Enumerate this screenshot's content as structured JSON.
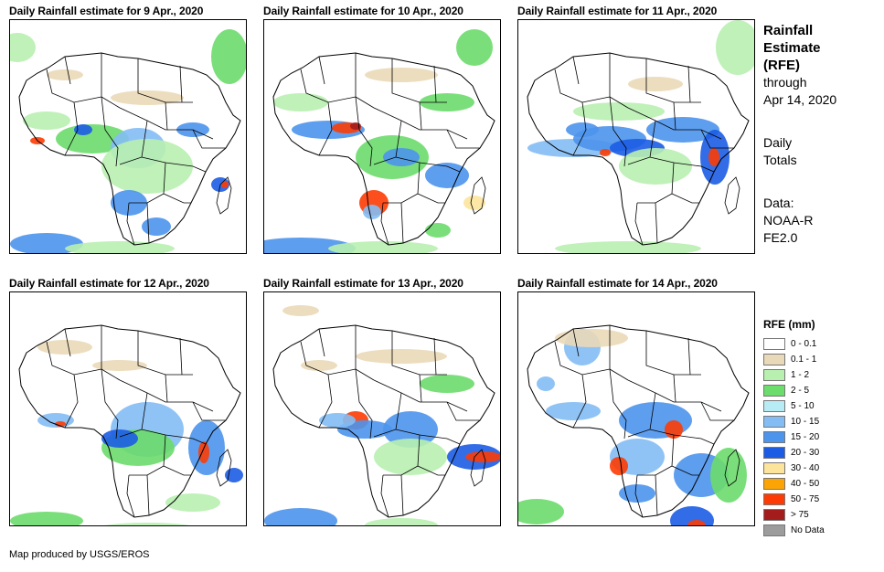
{
  "panels": [
    {
      "title": "Daily Rainfall estimate for 9 Apr., 2020"
    },
    {
      "title": "Daily Rainfall estimate for 10 Apr., 2020"
    },
    {
      "title": "Daily Rainfall estimate for 11 Apr., 2020"
    },
    {
      "title": "Daily Rainfall estimate for 12 Apr., 2020"
    },
    {
      "title": "Daily Rainfall estimate for 13 Apr., 2020"
    },
    {
      "title": "Daily Rainfall estimate for 14 Apr., 2020"
    }
  ],
  "side": {
    "title": "Rainfall Estimate (RFE)",
    "through_label": "through",
    "through_date": "Apr 14, 2020",
    "totals": "Daily Totals",
    "data_label": "Data:",
    "data_source": "NOAA-RFE2.0"
  },
  "legend": {
    "title": "RFE (mm)",
    "items": [
      {
        "label": "0 - 0.1",
        "color": "#ffffff"
      },
      {
        "label": "0.1 - 1",
        "color": "#ead9b8"
      },
      {
        "label": "1 - 2",
        "color": "#b8f0b0"
      },
      {
        "label": "2 - 5",
        "color": "#6cdc6c"
      },
      {
        "label": "5 - 10",
        "color": "#b8ecf4"
      },
      {
        "label": "10 - 15",
        "color": "#84bcf4"
      },
      {
        "label": "15 - 20",
        "color": "#4c94ec"
      },
      {
        "label": "20 - 30",
        "color": "#1c5ce4"
      },
      {
        "label": "30 - 40",
        "color": "#fce49c"
      },
      {
        "label": "40 - 50",
        "color": "#fca404"
      },
      {
        "label": "50 - 75",
        "color": "#fc3c04"
      },
      {
        "label": "> 75",
        "color": "#a41c1c"
      },
      {
        "label": "No Data",
        "color": "#9c9c9c"
      }
    ]
  },
  "footer": "Map produced by USGS/EROS"
}
